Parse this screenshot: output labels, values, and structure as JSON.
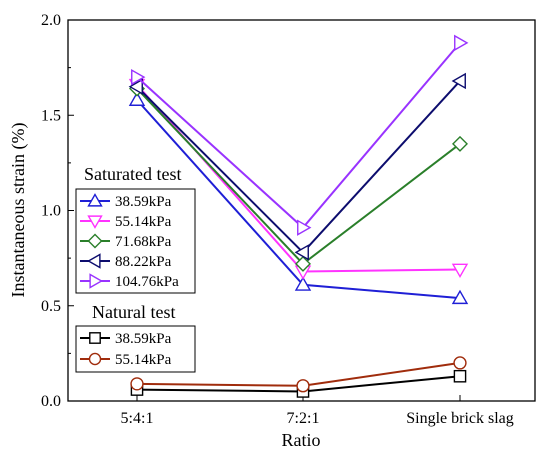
{
  "chart_data": {
    "type": "line",
    "xlabel": "Ratio",
    "ylabel": "Instantaneous strain (%)",
    "categories": [
      "5:4:1",
      "7:2:1",
      "Single brick slag"
    ],
    "ylim": [
      0,
      2.0
    ],
    "yticks": [
      "0.0",
      "0.5",
      "1.0",
      "1.5",
      "2.0"
    ],
    "grid": false,
    "legend_groups": [
      {
        "title": "Saturated test",
        "placement": "middle-left",
        "series": [
          {
            "name": "38.59kPa",
            "values": [
              1.58,
              0.61,
              0.54
            ],
            "color": "#1f1fd6",
            "marker": "triangle-up"
          },
          {
            "name": "55.14kPa",
            "values": [
              1.66,
              0.68,
              0.69
            ],
            "color": "#ff33ff",
            "marker": "triangle-down"
          },
          {
            "name": "71.68kPa",
            "values": [
              1.64,
              0.72,
              1.35
            ],
            "color": "#2a7f2a",
            "marker": "diamond"
          },
          {
            "name": "88.22kPa",
            "values": [
              1.65,
              0.78,
              1.68
            ],
            "color": "#0d0d6e",
            "marker": "triangle-left"
          },
          {
            "name": "104.76kPa",
            "values": [
              1.7,
              0.91,
              1.88
            ],
            "color": "#9933ff",
            "marker": "triangle-right"
          }
        ]
      },
      {
        "title": "Natural test",
        "placement": "bottom-left",
        "series": [
          {
            "name": "38.59kPa",
            "values": [
              0.06,
              0.05,
              0.13
            ],
            "color": "#000000",
            "marker": "square"
          },
          {
            "name": "55.14kPa",
            "values": [
              0.09,
              0.08,
              0.2
            ],
            "color": "#a02c0c",
            "marker": "circle"
          }
        ]
      }
    ]
  }
}
